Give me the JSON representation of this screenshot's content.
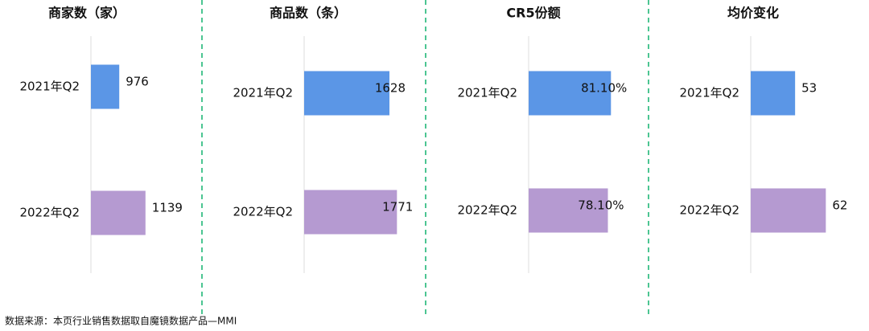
{
  "chart_data": [
    {
      "type": "barh",
      "title": "商家数（家）",
      "categories": [
        "2021年Q2",
        "2022年Q2"
      ],
      "values": [
        976,
        1139
      ],
      "colors": [
        "#5b96e6",
        "#b59ad1"
      ],
      "xlim": [
        800,
        1500
      ]
    },
    {
      "type": "barh",
      "title": "商品数（条）",
      "categories": [
        "2021年Q2",
        "2022年Q2"
      ],
      "values": [
        1628,
        1771
      ],
      "colors": [
        "#5b96e6",
        "#b59ad1"
      ],
      "xlim": [
        0,
        2150
      ]
    },
    {
      "type": "barh",
      "title": "CR5份额",
      "categories": [
        "2021年Q2",
        "2022年Q2"
      ],
      "values": [
        81.1,
        78.1
      ],
      "value_labels": [
        "81.10%",
        "78.10%"
      ],
      "colors": [
        "#5b96e6",
        "#b59ad1"
      ],
      "xlim": [
        0,
        111
      ]
    },
    {
      "type": "barh",
      "title": "均价变化",
      "categories": [
        "2021年Q2",
        "2022年Q2"
      ],
      "values": [
        53,
        62
      ],
      "colors": [
        "#5b96e6",
        "#b59ad1"
      ],
      "xlim": [
        40,
        73
      ]
    }
  ],
  "source": "数据来源：本页行业销售数据取自魔镜数据产品—MMI"
}
